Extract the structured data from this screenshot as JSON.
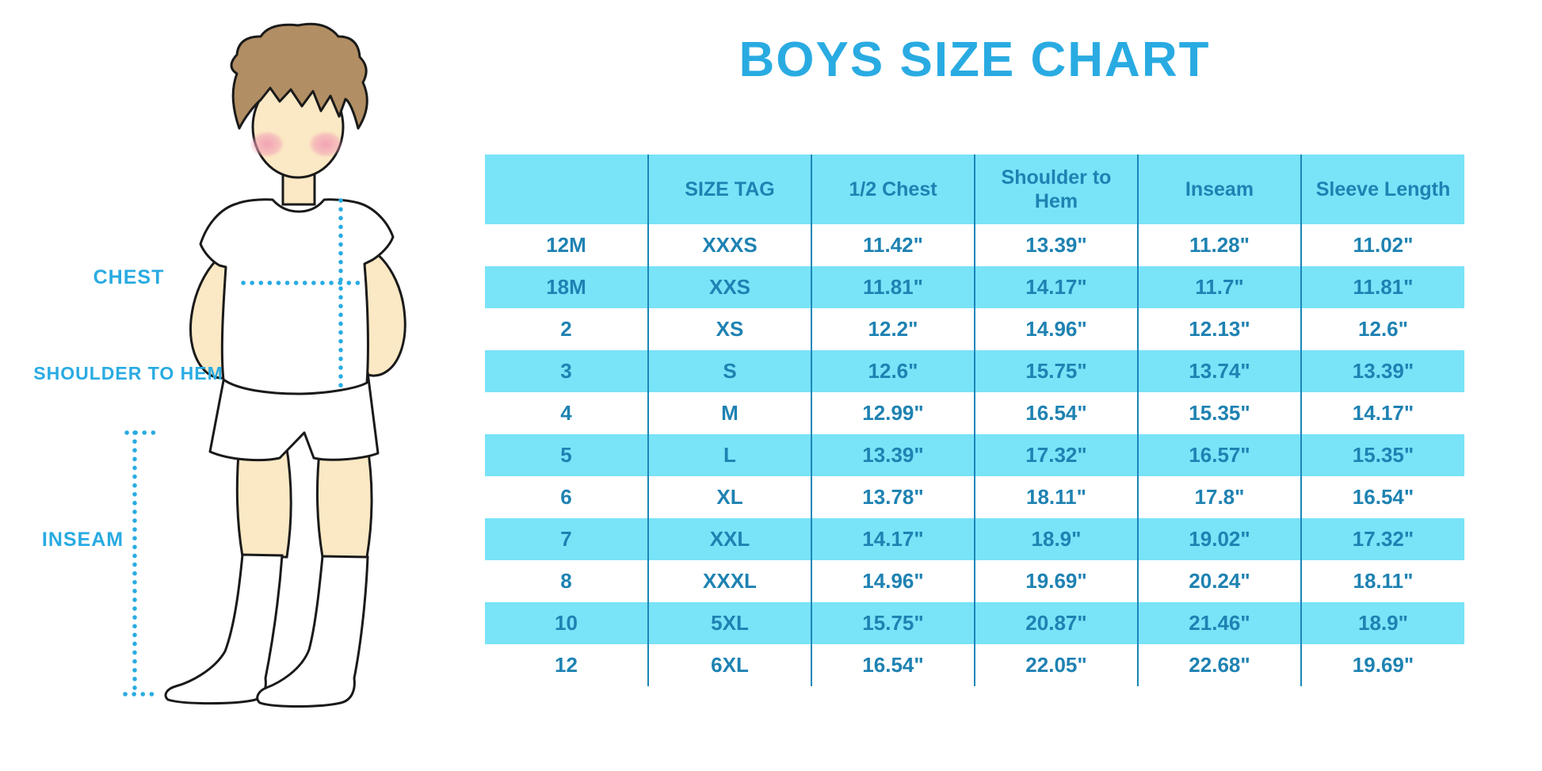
{
  "title": "BOYS SIZE CHART",
  "colors": {
    "accent_cyan": "#29ABE2",
    "table_stripe": "#79E3F8",
    "table_text": "#1E82B2",
    "table_divider": "#1A86B8",
    "skin": "#FBE8C4",
    "hair": "#B18E63",
    "blush": "#F2A0B4",
    "outline": "#1A1A1A"
  },
  "figure": {
    "description": "illustration of a boy in white t-shirt, shorts and knee socks with dotted measurement guides",
    "labels": {
      "chest": "CHEST",
      "shoulder_to_hem": "SHOULDER TO HEM",
      "inseam": "INSEAM"
    }
  },
  "chart_data": {
    "type": "table",
    "title": "BOYS SIZE CHART",
    "columns": [
      "",
      "SIZE TAG",
      "1/2 Chest",
      "Shoulder to Hem",
      "Inseam",
      "Sleeve Length"
    ],
    "rows": [
      [
        "12M",
        "XXXS",
        "11.42\"",
        "13.39\"",
        "11.28\"",
        "11.02\""
      ],
      [
        "18M",
        "XXS",
        "11.81\"",
        "14.17\"",
        "11.7\"",
        "11.81\""
      ],
      [
        "2",
        "XS",
        "12.2\"",
        "14.96\"",
        "12.13\"",
        "12.6\""
      ],
      [
        "3",
        "S",
        "12.6\"",
        "15.75\"",
        "13.74\"",
        "13.39\""
      ],
      [
        "4",
        "M",
        "12.99\"",
        "16.54\"",
        "15.35\"",
        "14.17\""
      ],
      [
        "5",
        "L",
        "13.39\"",
        "17.32\"",
        "16.57\"",
        "15.35\""
      ],
      [
        "6",
        "XL",
        "13.78\"",
        "18.11\"",
        "17.8\"",
        "16.54\""
      ],
      [
        "7",
        "XXL",
        "14.17\"",
        "18.9\"",
        "19.02\"",
        "17.32\""
      ],
      [
        "8",
        "XXXL",
        "14.96\"",
        "19.69\"",
        "20.24\"",
        "18.11\""
      ],
      [
        "10",
        "5XL",
        "15.75\"",
        "20.87\"",
        "21.46\"",
        "18.9\""
      ],
      [
        "12",
        "6XL",
        "16.54\"",
        "22.05\"",
        "22.68\"",
        "19.69\""
      ]
    ],
    "layout": {
      "header_background": "#79E3F8",
      "zebra_striping": "alternate rows light blue",
      "units": "inches"
    }
  }
}
